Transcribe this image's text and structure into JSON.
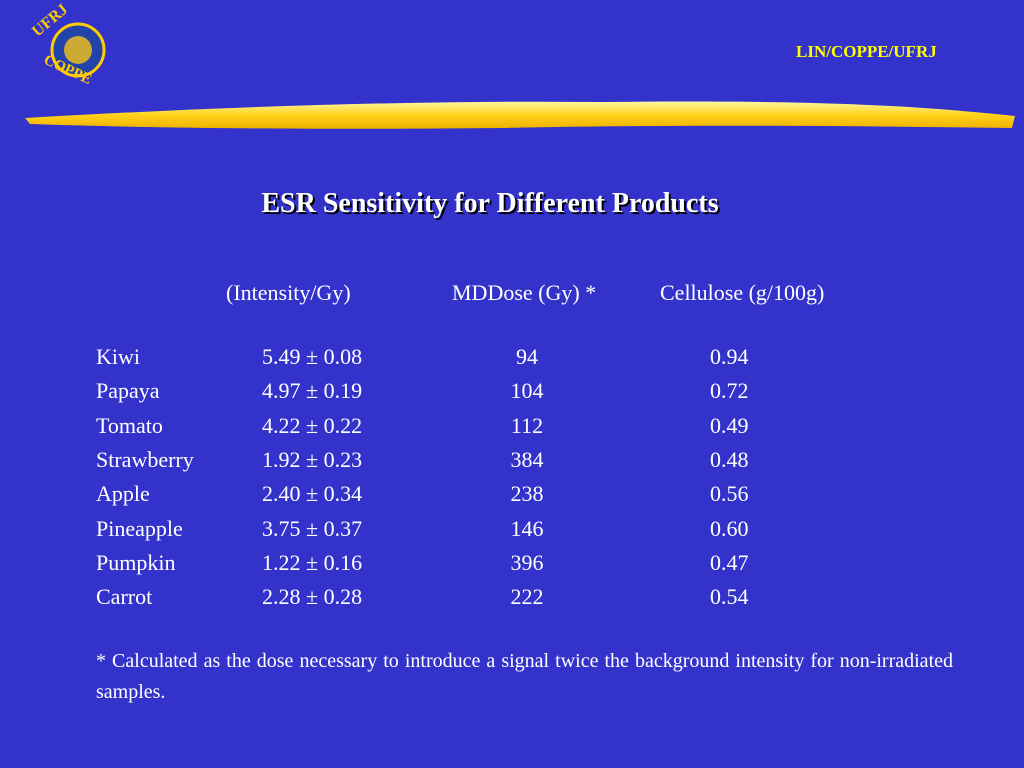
{
  "header": {
    "logo_top": "UFRJ",
    "logo_bottom": "COPPE",
    "org": "LIN/COPPE/UFRJ"
  },
  "title": "ESR  Sensitivity  for  Different Products",
  "table": {
    "columns": [
      "(Intensity/Gy)",
      "MDDose (Gy) *",
      "Cellulose (g/100g)"
    ],
    "rows": [
      [
        "Kiwi",
        "5.49 ± 0.08",
        "94",
        "0.94"
      ],
      [
        "Papaya",
        "4.97 ± 0.19",
        "104",
        "0.72"
      ],
      [
        "Tomato",
        "4.22 ± 0.22",
        "112",
        "0.49"
      ],
      [
        "Strawberry",
        "1.92 ± 0.23",
        "384",
        "0.48"
      ],
      [
        "Apple",
        "2.40 ± 0.34",
        "238",
        "0.56"
      ],
      [
        "Pineapple",
        "3.75 ± 0.37",
        "146",
        "0.60"
      ],
      [
        "Pumpkin",
        "1.22 ± 0.16",
        "396",
        "0.47"
      ],
      [
        "Carrot",
        "2.28 ± 0.28",
        "222",
        "0.54"
      ]
    ]
  },
  "footnote": "* Calculated as the dose necessary to introduce a signal twice the background intensity for non-irradiated samples."
}
